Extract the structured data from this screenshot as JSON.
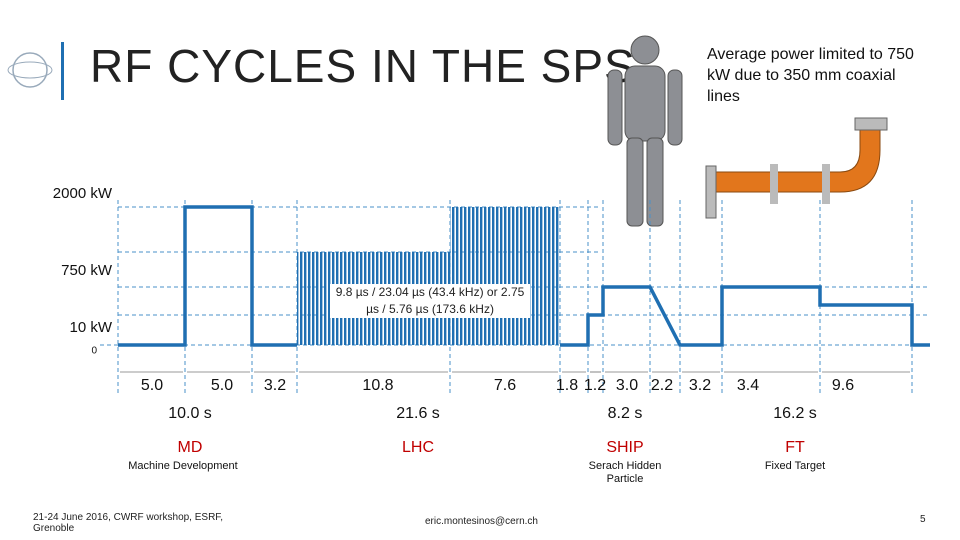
{
  "header": {
    "title": "RF CYCLES IN THE SPS"
  },
  "note": "Average power limited to 750 kW due to 350 mm coaxial lines",
  "levels": [
    "2000 kW",
    "750 kW",
    "10 kW",
    "0"
  ],
  "pulse_note": "9.8 µs / 23.04 µs (43.4 kHz) or 2.75 µs / 5.76 µs (173.6 kHz)",
  "durations": [
    "5.0",
    "5.0",
    "3.2",
    "10.8",
    "7.6",
    "1.8",
    "1.2",
    "3.0",
    "2.2",
    "3.2",
    "3.4",
    "9.6"
  ],
  "cycles": [
    {
      "total": "10.0 s",
      "name": "MD",
      "description": "Machine Development"
    },
    {
      "total": "21.6 s",
      "name": "LHC"
    },
    {
      "total": "8.2 s",
      "name": "SHIP",
      "description": "Serach Hidden Particle"
    },
    {
      "total": "16.2 s",
      "name": "FT",
      "description": "Fixed Target"
    }
  ],
  "footer": {
    "event": "21-24 June 2016, CWRF workshop, ESRF, Grenoble",
    "email": "eric.montesinos@cern.ch",
    "page": "5"
  }
}
